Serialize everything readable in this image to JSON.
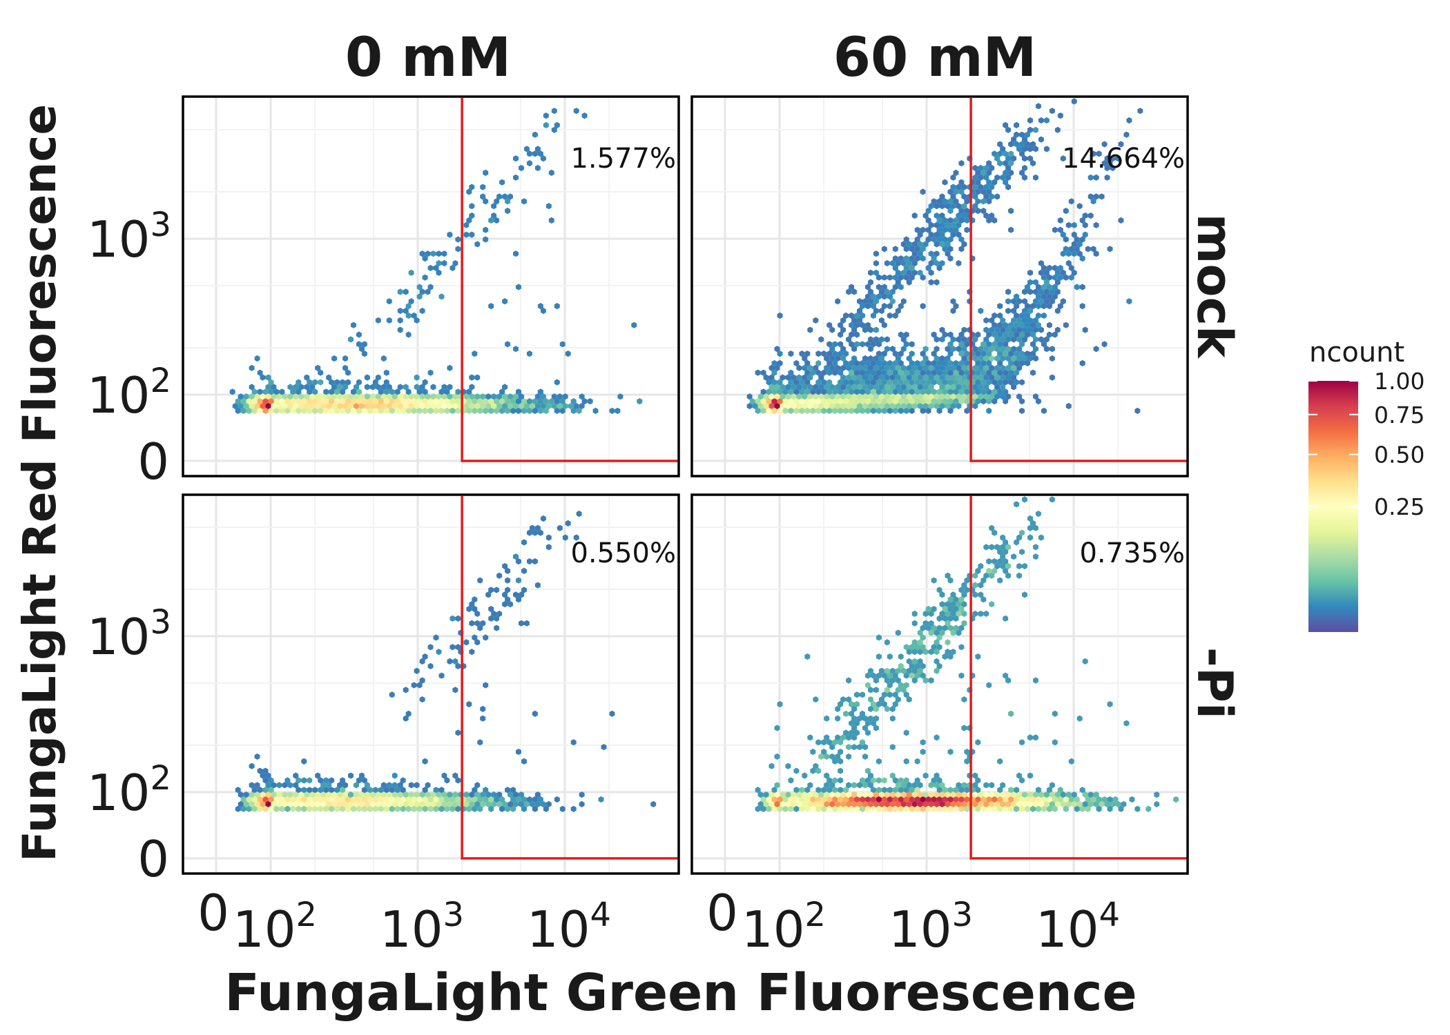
{
  "chart_data": {
    "type": "heatmap",
    "subtype": "hexbin",
    "xlabel": "FungaLight Green Fluorescence",
    "ylabel": "FungaLight Red Fluorescence",
    "columns": [
      "0 mM",
      "60 mM"
    ],
    "rows": [
      "mock",
      "-Pi"
    ],
    "x_scale": "biexponential",
    "y_scale": "biexponential",
    "x_ticks": [
      {
        "value": 0,
        "label": "0"
      },
      {
        "value": 100,
        "base": "10",
        "exp": "2"
      },
      {
        "value": 1000,
        "base": "10",
        "exp": "3"
      },
      {
        "value": 10000,
        "base": "10",
        "exp": "4"
      }
    ],
    "y_ticks": [
      {
        "value": 0,
        "label": "0"
      },
      {
        "value": 100,
        "base": "10",
        "exp": "2"
      },
      {
        "value": 1000,
        "base": "10",
        "exp": "3"
      }
    ],
    "gate": {
      "x_min": 2000,
      "y_min": 0,
      "color": "#e41a1c"
    },
    "panels": [
      {
        "row": "mock",
        "column": "0 mM",
        "gate_percent": "1.577%"
      },
      {
        "row": "mock",
        "column": "60 mM",
        "gate_percent": "14.664%"
      },
      {
        "row": "-Pi",
        "column": "0 mM",
        "gate_percent": "0.550%"
      },
      {
        "row": "-Pi",
        "column": "60 mM",
        "gate_percent": "0.735%"
      }
    ],
    "legend": {
      "title": "ncount",
      "placement": "right",
      "ticks": [
        "1.00",
        "0.75",
        "0.50",
        "0.25"
      ],
      "tick_values": [
        1.0,
        0.75,
        0.5,
        0.25
      ],
      "palette": "Spectral",
      "colors": [
        "#5e4fa2",
        "#3288bd",
        "#66c2a5",
        "#abdda4",
        "#e6f598",
        "#ffffbf",
        "#fee08b",
        "#fdae61",
        "#f46d43",
        "#d53e4f",
        "#9e0142"
      ]
    },
    "grid": true
  }
}
